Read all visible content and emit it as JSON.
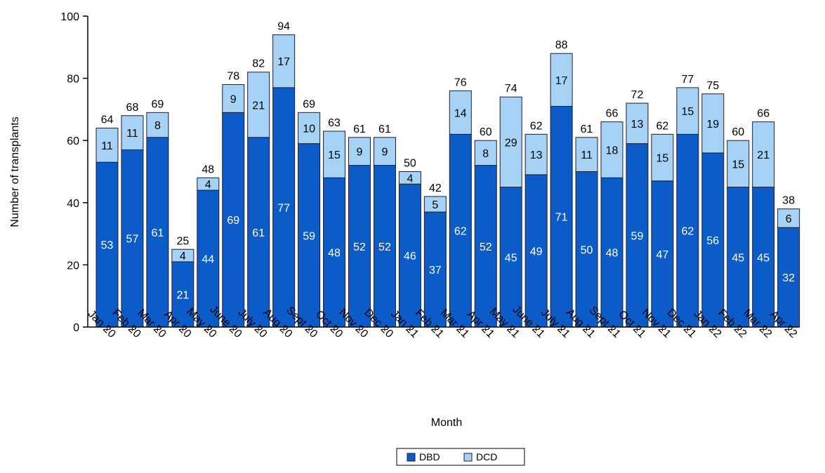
{
  "chart_data": {
    "type": "bar",
    "stacked": true,
    "title": "",
    "xlabel": "Month",
    "ylabel": "Number of transplants",
    "ylim": [
      0,
      100
    ],
    "yticks": [
      0,
      20,
      40,
      60,
      80,
      100
    ],
    "grid": false,
    "legend_position": "bottom",
    "categories": [
      "Jan 20",
      "Feb 20",
      "Mar 20",
      "Apr 20",
      "May 20",
      "June 20",
      "July 20",
      "Aug 20",
      "Sept 20",
      "Oct 20",
      "Nov 20",
      "Dec 20",
      "Jan 21",
      "Feb 21",
      "Mar 21",
      "Apr 21",
      "May 21",
      "June 21",
      "July 21",
      "Aug 21",
      "Sept 21",
      "Oct 21",
      "Nov 21",
      "Dec 21",
      "Jan 22",
      "Feb 22",
      "Mar 22",
      "Apr 22"
    ],
    "series": [
      {
        "name": "DBD",
        "color": "#0b5cc8",
        "values": [
          53,
          57,
          61,
          21,
          44,
          69,
          61,
          77,
          59,
          48,
          52,
          52,
          46,
          37,
          62,
          52,
          45,
          49,
          71,
          50,
          48,
          59,
          47,
          62,
          56,
          45,
          45,
          32
        ]
      },
      {
        "name": "DCD",
        "color": "#a6d2f5",
        "values": [
          11,
          11,
          8,
          4,
          4,
          9,
          21,
          17,
          10,
          15,
          9,
          9,
          4,
          5,
          14,
          8,
          29,
          13,
          17,
          11,
          18,
          13,
          15,
          15,
          19,
          15,
          21,
          6
        ]
      }
    ],
    "totals": [
      64,
      68,
      69,
      25,
      48,
      78,
      82,
      94,
      69,
      63,
      61,
      61,
      50,
      42,
      76,
      60,
      74,
      62,
      88,
      61,
      66,
      72,
      62,
      77,
      75,
      60,
      66,
      38
    ]
  }
}
